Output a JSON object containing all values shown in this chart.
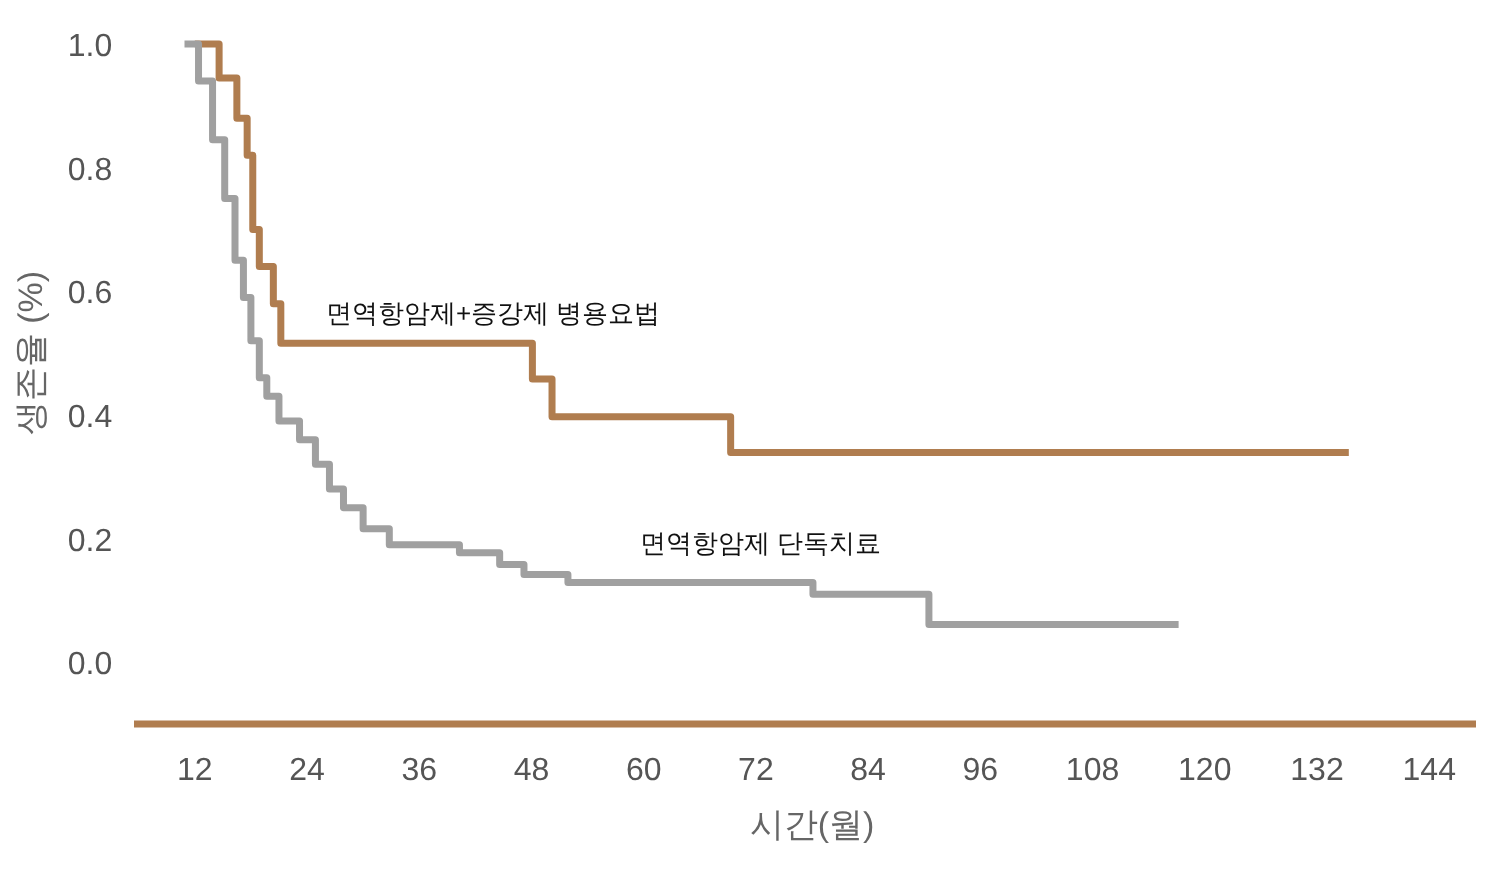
{
  "chart_data": {
    "type": "step",
    "xlabel": "시간(월)",
    "ylabel": "생존율 (%)",
    "xlim": [
      5.5,
      149
    ],
    "ylim": [
      -0.1,
      1.0
    ],
    "xticks": [
      12,
      24,
      36,
      48,
      60,
      72,
      84,
      96,
      108,
      120,
      132,
      144
    ],
    "yticks": [
      {
        "value": 0,
        "label": "0.0"
      },
      0.2,
      0.4,
      0.6,
      0.8,
      {
        "value": 1,
        "label": "1.0"
      }
    ],
    "grid": false,
    "marker": "none",
    "line_style": "solid",
    "annotations": [
      "면역항암제+증강제 병용요법",
      "면역항암제 단독치료"
    ],
    "series": [
      {
        "color": "#b07d4f",
        "x": [
          12,
          14.6,
          16.5,
          17.6,
          18.2,
          18.9,
          20.4,
          21.2,
          48.1,
          50.2,
          69.3,
          135.4
        ],
        "values": [
          1.0,
          0.945,
          0.88,
          0.82,
          0.7,
          0.64,
          0.58,
          0.516,
          0.458,
          0.397,
          0.339,
          0.339
        ]
      },
      {
        "color": "#a0a0a0",
        "x": [
          10.9,
          12.4,
          13.9,
          15.2,
          16.3,
          17.2,
          18.0,
          18.9,
          19.7,
          21.0,
          23.2,
          24.9,
          26.4,
          27.9,
          30.0,
          32.8,
          40.3,
          44.6,
          47.2,
          51.9,
          78.1,
          90.5,
          117.2
        ],
        "values": [
          1.0,
          0.94,
          0.845,
          0.75,
          0.65,
          0.59,
          0.52,
          0.46,
          0.43,
          0.39,
          0.36,
          0.32,
          0.28,
          0.25,
          0.216,
          0.19,
          0.177,
          0.158,
          0.142,
          0.129,
          0.11,
          0.061,
          0.061
        ]
      }
    ]
  }
}
